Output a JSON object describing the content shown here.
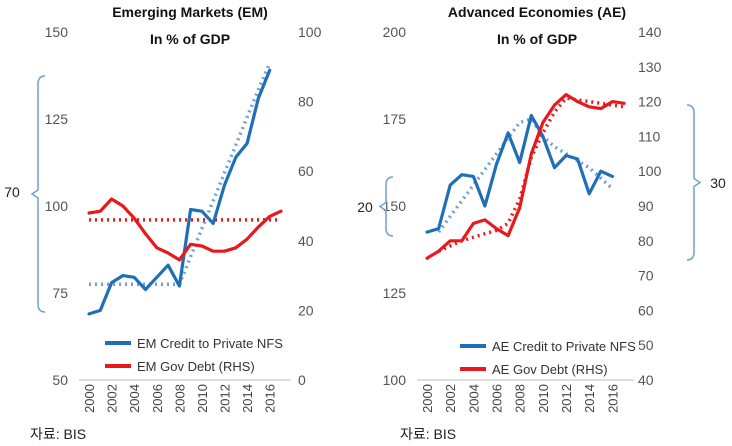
{
  "chart_data": [
    {
      "type": "line",
      "title": "Emerging Markets (EM)",
      "subtitle": "In % of GDP",
      "x": [
        "2000",
        "2001",
        "2002",
        "2003",
        "2004",
        "2005",
        "2006",
        "2007",
        "2008",
        "2009",
        "2010",
        "2011",
        "2012",
        "2013",
        "2014",
        "2015",
        "2016",
        "2017"
      ],
      "xticks": [
        "2000",
        "2002",
        "2004",
        "2006",
        "2008",
        "2010",
        "2012",
        "2014",
        "2016"
      ],
      "y_left": {
        "lim": [
          50,
          150
        ],
        "ticks": [
          "50",
          "75",
          "100",
          "125",
          "150"
        ]
      },
      "y_right": {
        "lim": [
          0,
          100
        ],
        "ticks": [
          "0",
          "20",
          "40",
          "60",
          "80",
          "100"
        ]
      },
      "series": [
        {
          "name": "EM Credit to Private NFS",
          "axis": "left",
          "color": "#1f6fb8",
          "style": "solid",
          "values": [
            69,
            70,
            78,
            80,
            79.5,
            76,
            79.5,
            83,
            77,
            99,
            98.5,
            95,
            106,
            114,
            118,
            131,
            139,
            null
          ]
        },
        {
          "name": "EM Gov Debt (RHS)",
          "axis": "right",
          "color": "#e8181c",
          "style": "solid",
          "values": [
            48,
            48.5,
            52,
            50,
            46.5,
            42,
            38,
            36.5,
            34.5,
            39,
            38.5,
            37,
            37,
            38,
            40.5,
            44,
            47,
            48.5
          ]
        },
        {
          "name": "",
          "axis": "left",
          "color": "#6fa1d6",
          "style": "dotted",
          "values": [
            77.5,
            77.5,
            77.5,
            77.5,
            77.5,
            77.5,
            77.5,
            77.5,
            77.5,
            85.5,
            93.5,
            101.5,
            109.5,
            117.5,
            125.5,
            133.5,
            141,
            null
          ]
        },
        {
          "name": "",
          "axis": "right",
          "color": "#e8181c",
          "style": "dotted",
          "values": [
            46,
            46,
            46,
            46,
            46,
            46,
            46,
            46,
            46,
            46,
            46,
            46,
            46,
            46,
            46,
            46,
            46,
            46
          ]
        }
      ],
      "annotations": [
        {
          "text": "70",
          "side": "left"
        }
      ],
      "source": "자료: BIS"
    },
    {
      "type": "line",
      "title": "Advanced Economies (AE)",
      "subtitle": "In % of GDP",
      "x": [
        "2000",
        "2001",
        "2002",
        "2003",
        "2004",
        "2005",
        "2006",
        "2007",
        "2008",
        "2009",
        "2010",
        "2011",
        "2012",
        "2013",
        "2014",
        "2015",
        "2016",
        "2017"
      ],
      "xticks": [
        "2000",
        "2002",
        "2004",
        "2006",
        "2008",
        "2010",
        "2012",
        "2014",
        "2016"
      ],
      "y_left": {
        "lim": [
          100,
          200
        ],
        "ticks": [
          "100",
          "125",
          "150",
          "175",
          "200"
        ]
      },
      "y_right": {
        "lim": [
          40,
          140
        ],
        "ticks": [
          "40",
          "50",
          "60",
          "70",
          "80",
          "90",
          "100",
          "110",
          "120",
          "130",
          "140"
        ]
      },
      "series": [
        {
          "name": "AE Credit to Private NFS",
          "axis": "left",
          "color": "#1f6fb8",
          "style": "solid",
          "values": [
            142.5,
            143.5,
            156,
            159,
            158.5,
            150,
            162,
            171,
            162.5,
            176,
            170,
            161,
            164.5,
            163.5,
            153.5,
            160,
            158.5,
            null
          ]
        },
        {
          "name": "AE Gov Debt (RHS)",
          "axis": "right",
          "color": "#e8181c",
          "style": "solid",
          "values": [
            75,
            77,
            80,
            80,
            85,
            86,
            83.5,
            81.5,
            89.5,
            105,
            114,
            119,
            122,
            120,
            118.5,
            118,
            120,
            119.5
          ]
        },
        {
          "name": "",
          "axis": "left",
          "color": "#6fa1d6",
          "style": "dotted",
          "values": [
            null,
            142.5,
            147,
            151.5,
            156,
            160.5,
            165,
            169.5,
            174,
            175,
            170,
            167,
            165,
            163,
            161,
            158,
            155,
            null
          ]
        },
        {
          "name": "",
          "axis": "right",
          "color": "#e8181c",
          "style": "dotted",
          "values": [
            null,
            77,
            78.5,
            80,
            81,
            82,
            83,
            85,
            92,
            104,
            111,
            117,
            121,
            120.5,
            120,
            119.5,
            119,
            118.5
          ]
        }
      ],
      "annotations": [
        {
          "text": "20",
          "side": "left"
        },
        {
          "text": "30",
          "side": "right"
        }
      ],
      "source": "자료: BIS"
    }
  ]
}
